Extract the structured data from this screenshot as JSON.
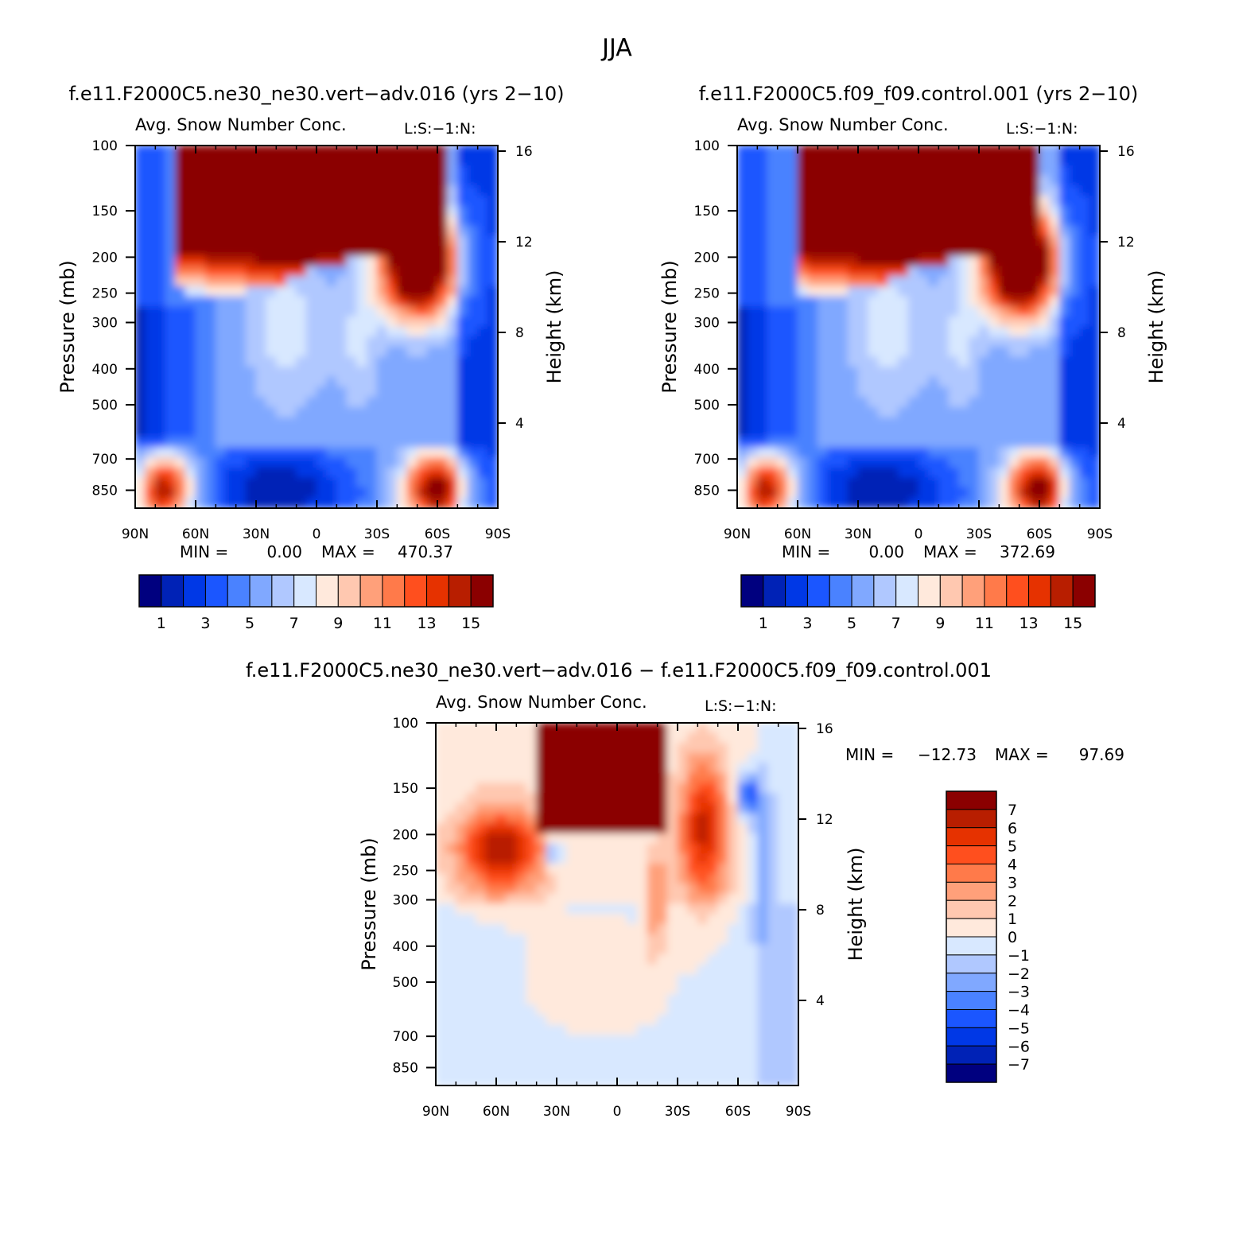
{
  "figure": {
    "title": "JJA"
  },
  "palettes": {
    "abs": [
      "#00007f",
      "#0022b6",
      "#0038e6",
      "#1b56ff",
      "#4a82ff",
      "#80a8ff",
      "#b0c8ff",
      "#d8e8ff",
      "#ffe9dc",
      "#ffc8b0",
      "#ffa07a",
      "#ff7a4a",
      "#ff4f1e",
      "#e63200",
      "#b81e00",
      "#8b0000"
    ],
    "diff": [
      "#8b0000",
      "#b81e00",
      "#e63200",
      "#ff4f1e",
      "#ff7a4a",
      "#ffa07a",
      "#ffc8b0",
      "#ffe9dc",
      "#d8e8ff",
      "#b0c8ff",
      "#80a8ff",
      "#4a82ff",
      "#1b56ff",
      "#0038e6",
      "#0022b6",
      "#00007f"
    ]
  },
  "chart_data": [
    {
      "type": "heatmap",
      "case_title": "f.e11.F2000C5.ne30_ne30.vert−adv.016 (yrs 2−10)",
      "title": "Avg. Snow Number Conc.",
      "units": "L:S:−1:N:",
      "xlabel": "",
      "ylabel": "Pressure (mb)",
      "y2label": "Height (km)",
      "xticks": [
        "90N",
        "60N",
        "30N",
        "0",
        "30S",
        "60S",
        "90S"
      ],
      "xlim": [
        90,
        -90
      ],
      "yticks": [
        "100",
        "150",
        "200",
        "250",
        "300",
        "400",
        "500",
        "700",
        "850"
      ],
      "ytick_values": [
        100,
        150,
        200,
        250,
        300,
        400,
        500,
        700,
        850
      ],
      "ylim": [
        100,
        950
      ],
      "y2ticks": [
        "16",
        "12",
        "8",
        "4"
      ],
      "y2tick_values": [
        16,
        12,
        8,
        4
      ],
      "stats": {
        "min_label": "MIN =",
        "min": "0.00",
        "max_label": "MAX =",
        "max": "470.37"
      },
      "colorbar": {
        "orientation": "horizontal",
        "labels": [
          "1",
          "3",
          "5",
          "7",
          "9",
          "11",
          "13",
          "15"
        ],
        "levels": [
          1,
          2,
          3,
          4,
          5,
          6,
          7,
          8,
          9,
          10,
          11,
          12,
          13,
          14,
          15
        ]
      }
    },
    {
      "type": "heatmap",
      "case_title": "f.e11.F2000C5.f09_f09.control.001 (yrs 2−10)",
      "title": "Avg. Snow Number Conc.",
      "units": "L:S:−1:N:",
      "xlabel": "",
      "ylabel": "Pressure (mb)",
      "y2label": "Height (km)",
      "xticks": [
        "90N",
        "60N",
        "30N",
        "0",
        "30S",
        "60S",
        "90S"
      ],
      "xlim": [
        90,
        -90
      ],
      "yticks": [
        "100",
        "150",
        "200",
        "250",
        "300",
        "400",
        "500",
        "700",
        "850"
      ],
      "ytick_values": [
        100,
        150,
        200,
        250,
        300,
        400,
        500,
        700,
        850
      ],
      "ylim": [
        100,
        950
      ],
      "y2ticks": [
        "16",
        "12",
        "8",
        "4"
      ],
      "y2tick_values": [
        16,
        12,
        8,
        4
      ],
      "stats": {
        "min_label": "MIN =",
        "min": "0.00",
        "max_label": "MAX =",
        "max": "372.69"
      },
      "colorbar": {
        "orientation": "horizontal",
        "labels": [
          "1",
          "3",
          "5",
          "7",
          "9",
          "11",
          "13",
          "15"
        ],
        "levels": [
          1,
          2,
          3,
          4,
          5,
          6,
          7,
          8,
          9,
          10,
          11,
          12,
          13,
          14,
          15
        ]
      }
    },
    {
      "type": "heatmap",
      "case_title": "f.e11.F2000C5.ne30_ne30.vert−adv.016 − f.e11.F2000C5.f09_f09.control.001",
      "title": "Avg. Snow Number Conc.",
      "units": "L:S:−1:N:",
      "xlabel": "",
      "ylabel": "Pressure (mb)",
      "y2label": "Height (km)",
      "xticks": [
        "90N",
        "60N",
        "30N",
        "0",
        "30S",
        "60S",
        "90S"
      ],
      "xlim": [
        90,
        -90
      ],
      "yticks": [
        "100",
        "150",
        "200",
        "250",
        "300",
        "400",
        "500",
        "700",
        "850"
      ],
      "ytick_values": [
        100,
        150,
        200,
        250,
        300,
        400,
        500,
        700,
        850
      ],
      "ylim": [
        100,
        950
      ],
      "y2ticks": [
        "16",
        "12",
        "8",
        "4"
      ],
      "y2tick_values": [
        16,
        12,
        8,
        4
      ],
      "stats": {
        "min_label": "MIN =",
        "min": "−12.73",
        "max_label": "MAX =",
        "max": "97.69"
      },
      "colorbar": {
        "orientation": "vertical",
        "labels": [
          "7",
          "6",
          "5",
          "4",
          "3",
          "2",
          "1",
          "0",
          "−1",
          "−2",
          "−3",
          "−4",
          "−5",
          "−6",
          "−7"
        ],
        "levels": [
          7,
          6,
          5,
          4,
          3,
          2,
          1,
          0,
          -1,
          -2,
          -3,
          -4,
          -5,
          -6,
          -7
        ]
      }
    }
  ]
}
